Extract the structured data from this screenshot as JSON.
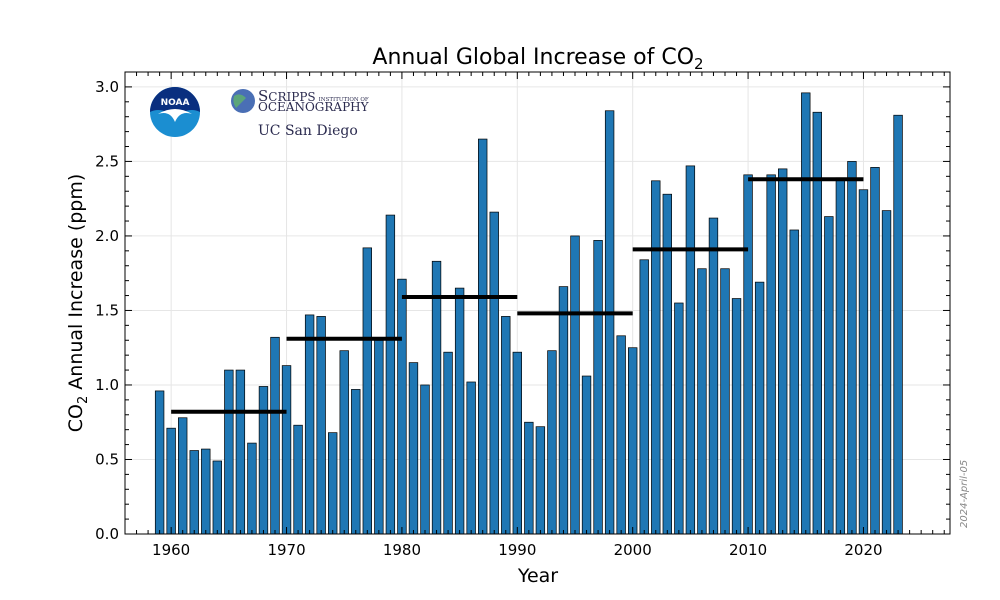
{
  "chart_data": {
    "type": "bar",
    "title_main": "Annual Global Increase of CO",
    "title_sub": "2",
    "xlabel": "Year",
    "ylabel_pre": "CO",
    "ylabel_sub": "2",
    "ylabel_post": " Annual Increase (ppm)",
    "xlim": [
      1956,
      2027.5
    ],
    "ylim": [
      0,
      3.1
    ],
    "x_ticks": [
      1960,
      1970,
      1980,
      1990,
      2000,
      2010,
      2020
    ],
    "y_ticks": [
      "0.0",
      "0.5",
      "1.0",
      "1.5",
      "2.0",
      "2.5",
      "3.0"
    ],
    "bar_color": "#1f77b4",
    "years": [
      1959,
      1960,
      1961,
      1962,
      1963,
      1964,
      1965,
      1966,
      1967,
      1968,
      1969,
      1970,
      1971,
      1972,
      1973,
      1974,
      1975,
      1976,
      1977,
      1978,
      1979,
      1980,
      1981,
      1982,
      1983,
      1984,
      1985,
      1986,
      1987,
      1988,
      1989,
      1990,
      1991,
      1992,
      1993,
      1994,
      1995,
      1996,
      1997,
      1998,
      1999,
      2000,
      2001,
      2002,
      2003,
      2004,
      2005,
      2006,
      2007,
      2008,
      2009,
      2010,
      2011,
      2012,
      2013,
      2014,
      2015,
      2016,
      2017,
      2018,
      2019,
      2020,
      2021,
      2022,
      2023
    ],
    "values": [
      0.96,
      0.71,
      0.78,
      0.56,
      0.57,
      0.49,
      1.1,
      1.1,
      0.61,
      0.99,
      1.32,
      1.13,
      0.73,
      1.47,
      1.46,
      0.68,
      1.23,
      0.97,
      1.92,
      1.3,
      2.14,
      1.71,
      1.15,
      1.0,
      1.83,
      1.22,
      1.65,
      1.02,
      2.65,
      2.16,
      1.46,
      1.22,
      0.75,
      0.72,
      1.23,
      1.66,
      2.0,
      1.06,
      1.97,
      2.84,
      1.33,
      1.25,
      1.84,
      2.37,
      2.28,
      1.55,
      2.47,
      1.78,
      2.12,
      1.78,
      1.58,
      2.41,
      1.69,
      2.41,
      2.45,
      2.04,
      2.96,
      2.83,
      2.13,
      2.39,
      2.5,
      2.31,
      2.46,
      2.17,
      2.81
    ],
    "decadal_averages": [
      {
        "start": 1960,
        "end": 1970,
        "value": 0.82
      },
      {
        "start": 1970,
        "end": 1980,
        "value": 1.31
      },
      {
        "start": 1980,
        "end": 1990,
        "value": 1.59
      },
      {
        "start": 1990,
        "end": 2000,
        "value": 1.48
      },
      {
        "start": 2000,
        "end": 2010,
        "value": 1.91
      },
      {
        "start": 2010,
        "end": 2020,
        "value": 2.38
      }
    ],
    "date_stamp": "2024-April-05"
  },
  "logos": {
    "noaa": "NOAA",
    "scripps_big_s": "S",
    "scripps_rest": "CRIPPS",
    "scripps_small": "INSTITUTION OF",
    "scripps_line2": "OCEANOGRAPHY",
    "ucsd": "UC San Diego"
  },
  "colors": {
    "noaa_blue": "#0a2f7f",
    "noaa_light": "#1b8ed1",
    "globe": "#4a6fb5"
  }
}
